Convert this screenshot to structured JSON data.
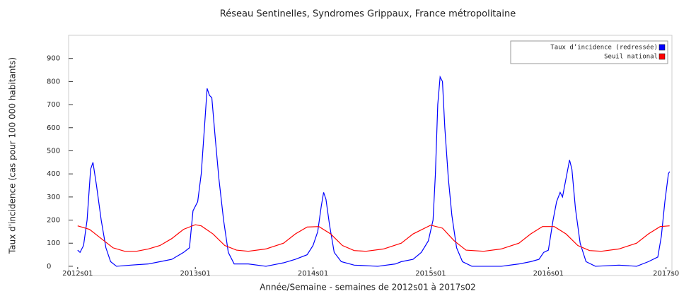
{
  "chart_data": {
    "type": "line",
    "title": "Réseau Sentinelles, Syndromes Grippaux, France métropolitaine",
    "x_label": "Année/Semaine - semaines de 2012s01 à 2017s02",
    "y_label": "Taux d'incidence (cas pour 100 000 habitants)",
    "xlim": [
      2011.923,
      2017.05
    ],
    "xticks": [
      {
        "value": 2012,
        "label": "2012s01"
      },
      {
        "value": 2013,
        "label": "2013s01"
      },
      {
        "value": 2014,
        "label": "2014s01"
      },
      {
        "value": 2015,
        "label": "2015s01"
      },
      {
        "value": 2016,
        "label": "2016s01"
      },
      {
        "value": 2017,
        "label": "2017s0"
      }
    ],
    "ylim": [
      -40,
      1000
    ],
    "yticks": [
      0,
      100,
      200,
      300,
      400,
      500,
      600,
      700,
      800,
      900
    ],
    "legend_position": "upper right",
    "series": [
      {
        "name": "Taux d’incidence (redressée)",
        "color": "#0000ff",
        "x": [
          2012.0,
          2012.02,
          2012.05,
          2012.08,
          2012.11,
          2012.13,
          2012.16,
          2012.2,
          2012.24,
          2012.28,
          2012.33,
          2012.45,
          2012.6,
          2012.7,
          2012.8,
          2012.9,
          2012.95,
          2012.98,
          2013.02,
          2013.05,
          2013.08,
          2013.1,
          2013.12,
          2013.14,
          2013.17,
          2013.2,
          2013.24,
          2013.28,
          2013.33,
          2013.45,
          2013.6,
          2013.75,
          2013.85,
          2013.95,
          2014.0,
          2014.04,
          2014.07,
          2014.09,
          2014.11,
          2014.14,
          2014.18,
          2014.24,
          2014.35,
          2014.55,
          2014.7,
          2014.75,
          2014.85,
          2014.92,
          2014.98,
          2015.02,
          2015.04,
          2015.06,
          2015.08,
          2015.1,
          2015.12,
          2015.15,
          2015.18,
          2015.22,
          2015.27,
          2015.35,
          2015.6,
          2015.75,
          2015.85,
          2015.92,
          2015.96,
          2016.0,
          2016.04,
          2016.07,
          2016.1,
          2016.12,
          2016.15,
          2016.18,
          2016.2,
          2016.23,
          2016.27,
          2016.32,
          2016.4,
          2016.6,
          2016.75,
          2016.85,
          2016.93,
          2016.96,
          2016.99,
          2017.02,
          2017.03
        ],
        "values": [
          70,
          60,
          90,
          200,
          420,
          450,
          350,
          200,
          80,
          20,
          0,
          5,
          10,
          20,
          30,
          60,
          80,
          240,
          280,
          400,
          620,
          770,
          740,
          730,
          550,
          380,
          200,
          60,
          10,
          10,
          0,
          15,
          30,
          50,
          90,
          150,
          260,
          320,
          290,
          180,
          60,
          20,
          5,
          0,
          10,
          20,
          30,
          60,
          110,
          200,
          400,
          700,
          820,
          800,
          600,
          380,
          220,
          80,
          20,
          0,
          0,
          10,
          20,
          30,
          60,
          70,
          200,
          280,
          320,
          300,
          380,
          460,
          420,
          250,
          100,
          20,
          0,
          5,
          0,
          20,
          40,
          130,
          280,
          400,
          410
        ]
      },
      {
        "name": "Seuil national",
        "color": "#ff0000",
        "x": [
          2012.0,
          2012.1,
          2012.2,
          2012.3,
          2012.4,
          2012.5,
          2012.6,
          2012.7,
          2012.8,
          2012.9,
          2013.0,
          2013.05,
          2013.15,
          2013.25,
          2013.35,
          2013.45,
          2013.6,
          2013.75,
          2013.85,
          2013.95,
          2014.05,
          2014.15,
          2014.25,
          2014.35,
          2014.45,
          2014.6,
          2014.75,
          2014.85,
          2015.0,
          2015.1,
          2015.2,
          2015.3,
          2015.45,
          2015.6,
          2015.75,
          2015.85,
          2015.95,
          2016.05,
          2016.15,
          2016.25,
          2016.35,
          2016.45,
          2016.6,
          2016.75,
          2016.85,
          2016.95,
          2017.03
        ],
        "values": [
          175,
          160,
          120,
          80,
          65,
          65,
          75,
          90,
          120,
          160,
          180,
          175,
          140,
          90,
          70,
          65,
          75,
          100,
          140,
          170,
          172,
          140,
          90,
          68,
          65,
          75,
          100,
          140,
          178,
          165,
          110,
          70,
          65,
          75,
          100,
          140,
          172,
          172,
          140,
          90,
          68,
          65,
          75,
          100,
          140,
          172,
          175
        ]
      }
    ]
  }
}
